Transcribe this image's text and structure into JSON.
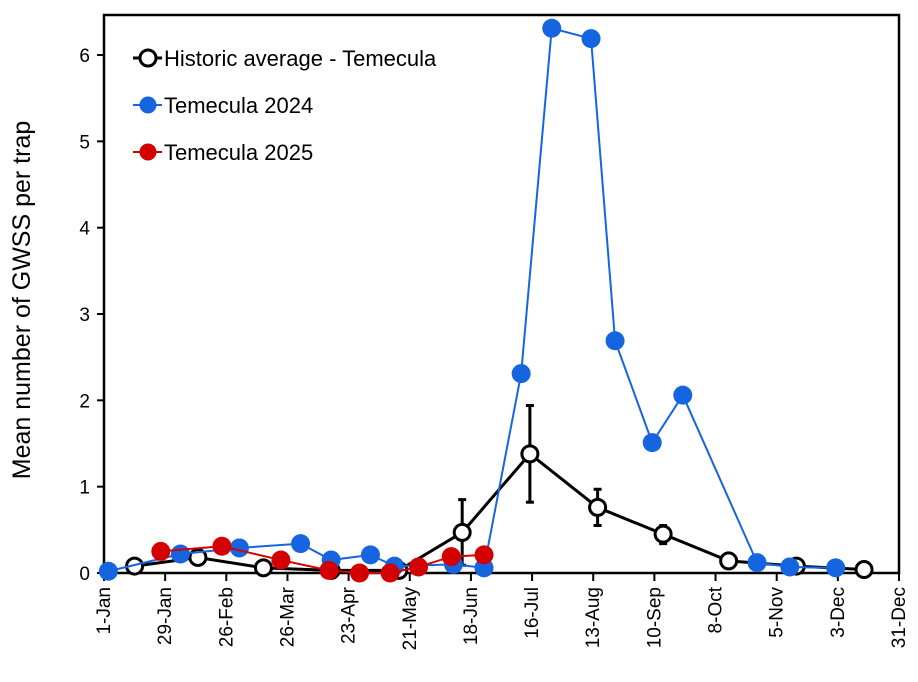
{
  "chart_data": {
    "type": "line",
    "title": "",
    "xlabel": "",
    "ylabel": "Mean number of GWSS per trap",
    "xlim": [
      "1-Jan",
      "31-Dec"
    ],
    "ylim": [
      0,
      6.5
    ],
    "xticks": [
      "1-Jan",
      "29-Jan",
      "26-Feb",
      "26-Mar",
      "23-Apr",
      "21-May",
      "18-Jun",
      "16-Jul",
      "13-Aug",
      "10-Sep",
      "8-Oct",
      "5-Nov",
      "3-Dec",
      "31-Dec"
    ],
    "yticks": [
      0,
      1,
      2,
      3,
      4,
      5,
      6
    ],
    "grid": false,
    "legend": "top-left",
    "series": [
      {
        "name": "Historic average - Temecula",
        "color": "#000000",
        "marker": "open-circle",
        "x": [
          "15-Jan",
          "13-Feb",
          "15-Mar",
          "15-Apr",
          "16-May",
          "14-Jun",
          "15-Jul",
          "15-Aug",
          "14-Sep",
          "14-Oct",
          "14-Nov",
          "15-Dec"
        ],
        "y": [
          0.08,
          0.18,
          0.06,
          0.03,
          0.03,
          0.47,
          1.38,
          0.76,
          0.45,
          0.14,
          0.08,
          0.04
        ],
        "error_low": [
          null,
          null,
          null,
          null,
          null,
          0.09,
          0.82,
          0.55,
          0.34,
          null,
          null,
          null
        ],
        "error_high": [
          null,
          null,
          null,
          null,
          null,
          0.85,
          1.94,
          0.97,
          0.55,
          null,
          null,
          null
        ]
      },
      {
        "name": "Temecula 2024",
        "color": "#1565e0",
        "marker": "filled-circle",
        "x": [
          "3-Jan",
          "5-Feb",
          "4-Mar",
          "1-Apr",
          "15-Apr",
          "3-May",
          "14-May",
          "10-Jun",
          "24-Jun",
          "11-Jul",
          "25-Jul",
          "12-Aug",
          "23-Aug",
          "9-Sep",
          "23-Sep",
          "27-Oct",
          "11-Nov",
          "2-Dec"
        ],
        "y": [
          0.02,
          0.22,
          0.29,
          0.34,
          0.15,
          0.21,
          0.08,
          0.1,
          0.06,
          2.31,
          6.31,
          6.19,
          2.69,
          1.51,
          2.06,
          0.12,
          0.07,
          0.06
        ]
      },
      {
        "name": "Temecula 2025",
        "color": "#d40000",
        "marker": "filled-circle",
        "x": [
          "27-Jan",
          "24-Feb",
          "23-Mar",
          "14-Apr",
          "28-Apr",
          "12-May",
          "25-May",
          "9-Jun",
          "24-Jun"
        ],
        "y": [
          0.25,
          0.31,
          0.15,
          0.03,
          0.0,
          0.0,
          0.07,
          0.19,
          0.21
        ]
      }
    ]
  }
}
